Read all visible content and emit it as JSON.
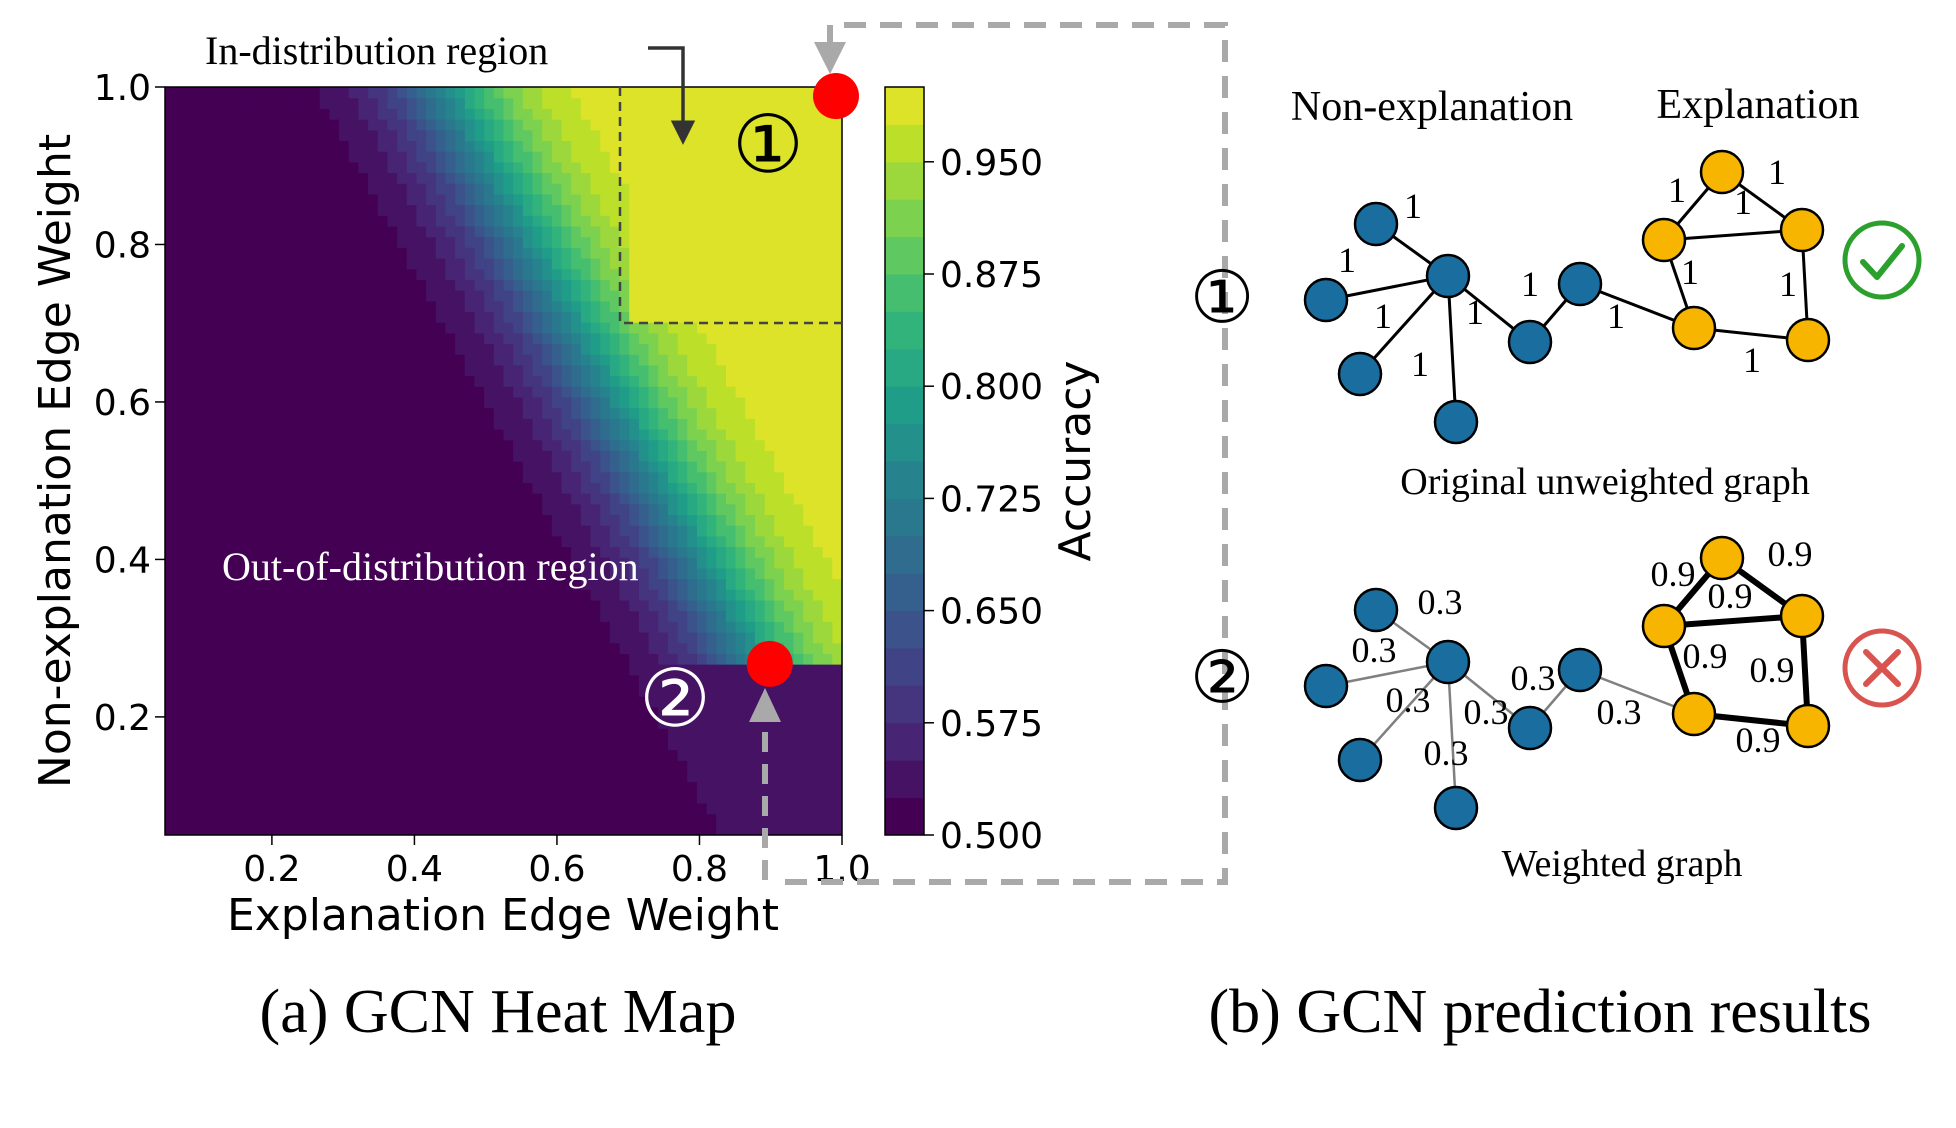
{
  "panel_a": {
    "caption": "(a) GCN Heat Map",
    "in_region_label": "In-distribution region",
    "out_region_label": "Out-of-distribution region",
    "marker1": "①",
    "marker2": "②"
  },
  "panel_b": {
    "caption": "(b) GCN prediction results",
    "non_expl_label": "Non-explanation",
    "expl_label": "Explanation",
    "graph1_marker": "①",
    "graph2_marker": "②",
    "graph1_caption": "Original unweighted graph",
    "graph2_caption": "Weighted graph",
    "graph1_edge_label": "1",
    "graph2_non_expl_weight": "0.3",
    "graph2_expl_weight": "0.9",
    "correct_icon": "check-circle-icon",
    "wrong_icon": "x-circle-icon"
  },
  "colors": {
    "non_expl_node": "#1a6e9f",
    "expl_node": "#f7b500",
    "marker_red": "#ff0000",
    "check_green": "#2ca02c",
    "cross_red": "#d9534f",
    "dashed_gray": "#a9a9a9"
  },
  "chart_data": {
    "type": "heatmap",
    "xlabel": "Explanation Edge Weight",
    "ylabel": "Non-explanation Edge Weight",
    "colorbar_label": "Accuracy",
    "xlim": [
      0.05,
      1.0
    ],
    "ylim": [
      0.05,
      1.0
    ],
    "xticks": [
      "0.2",
      "0.4",
      "0.6",
      "0.8",
      "1.0"
    ],
    "yticks": [
      "0.2",
      "0.4",
      "0.6",
      "0.8",
      "1.0"
    ],
    "colorbar_ticks": [
      "0.500",
      "0.575",
      "0.650",
      "0.725",
      "0.800",
      "0.875",
      "0.950"
    ],
    "colorbar_range": [
      0.5,
      1.0
    ],
    "colormap": "viridis",
    "in_distribution_region": {
      "x": [
        0.7,
        1.0
      ],
      "y": [
        0.7,
        1.0
      ]
    },
    "points": [
      {
        "label": "①",
        "x": 1.0,
        "y": 1.0
      },
      {
        "label": "②",
        "x": 0.9,
        "y": 0.28
      }
    ]
  }
}
